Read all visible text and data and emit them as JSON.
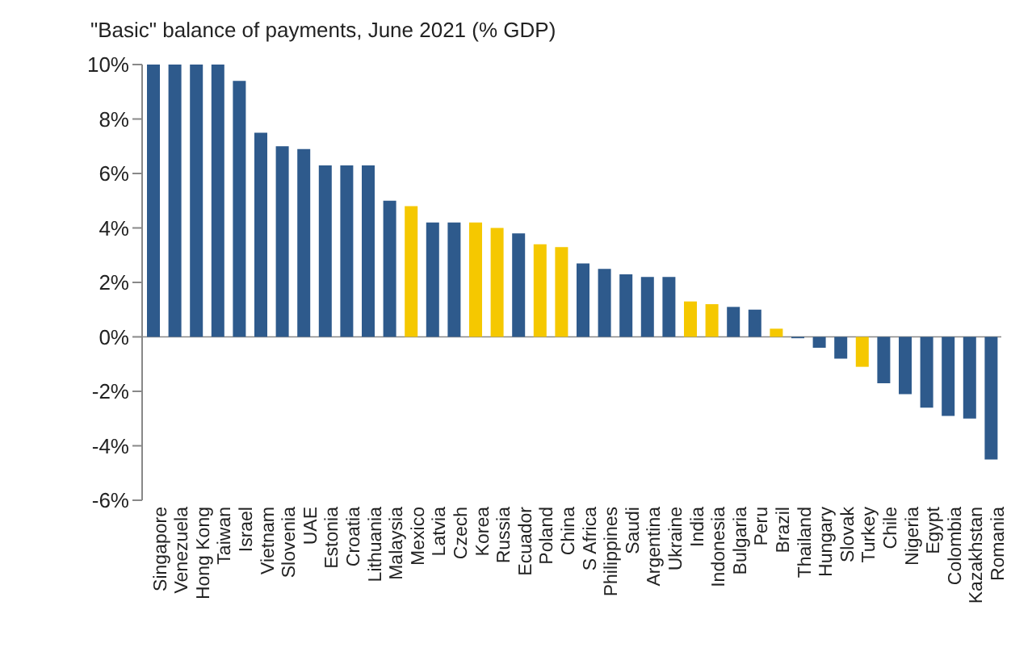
{
  "chart_data": {
    "type": "bar",
    "title": "\"Basic\" balance of payments, June 2021 (% GDP)",
    "categories": [
      "Singapore",
      "Venezuela",
      "Hong Kong",
      "Taiwan",
      "Israel",
      "Vietnam",
      "Slovenia",
      "UAE",
      "Estonia",
      "Croatia",
      "Lithuania",
      "Malaysia",
      "Mexico",
      "Latvia",
      "Czech",
      "Korea",
      "Russia",
      "Ecuador",
      "Poland",
      "China",
      "S Africa",
      "Philippines",
      "Saudi",
      "Argentina",
      "Ukraine",
      "India",
      "Indonesia",
      "Bulgaria",
      "Peru",
      "Brazil",
      "Thailand",
      "Hungary",
      "Slovak",
      "Turkey",
      "Chile",
      "Nigeria",
      "Egypt",
      "Colombia",
      "Kazakhstan",
      "Romania"
    ],
    "values": [
      10,
      10,
      10,
      10,
      9.4,
      7.5,
      7.0,
      6.9,
      6.3,
      6.3,
      6.3,
      5.0,
      4.8,
      4.2,
      4.2,
      4.2,
      4.0,
      3.8,
      3.4,
      3.3,
      2.7,
      2.5,
      2.3,
      2.2,
      2.2,
      1.3,
      1.2,
      1.1,
      1.0,
      0.3,
      -0.05,
      -0.4,
      -0.8,
      -1.1,
      -1.7,
      -2.1,
      -2.6,
      -2.9,
      -3.0,
      -4.5
    ],
    "colors": [
      "#2e5a8c",
      "#2e5a8c",
      "#2e5a8c",
      "#2e5a8c",
      "#2e5a8c",
      "#2e5a8c",
      "#2e5a8c",
      "#2e5a8c",
      "#2e5a8c",
      "#2e5a8c",
      "#2e5a8c",
      "#2e5a8c",
      "#f5c800",
      "#2e5a8c",
      "#2e5a8c",
      "#f5c800",
      "#f5c800",
      "#2e5a8c",
      "#f5c800",
      "#f5c800",
      "#2e5a8c",
      "#2e5a8c",
      "#2e5a8c",
      "#2e5a8c",
      "#2e5a8c",
      "#f5c800",
      "#f5c800",
      "#2e5a8c",
      "#2e5a8c",
      "#f5c800",
      "#2e5a8c",
      "#2e5a8c",
      "#2e5a8c",
      "#f5c800",
      "#2e5a8c",
      "#2e5a8c",
      "#2e5a8c",
      "#2e5a8c",
      "#2e5a8c",
      "#2e5a8c"
    ],
    "ylim": [
      -6,
      10
    ],
    "yticks": [
      {
        "value": -6,
        "label": "-6%"
      },
      {
        "value": -4,
        "label": "-4%"
      },
      {
        "value": -2,
        "label": "-2%"
      },
      {
        "value": 0,
        "label": "0%"
      },
      {
        "value": 2,
        "label": "2%"
      },
      {
        "value": 4,
        "label": "4%"
      },
      {
        "value": 6,
        "label": "6%"
      },
      {
        "value": 8,
        "label": "8%"
      },
      {
        "value": 10,
        "label": "10%"
      }
    ],
    "legend": false
  }
}
